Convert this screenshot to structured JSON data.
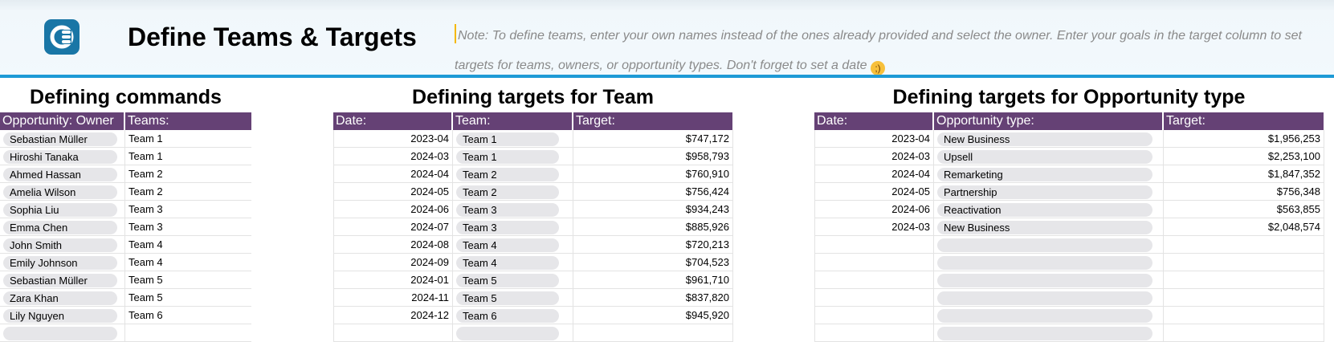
{
  "header": {
    "title": "Define Teams & Targets",
    "note": "Note: To define teams, enter your own names instead of the ones already provided and select the owner. Enter your goals in the target column to set targets for teams, owners, or opportunity types. Don't forget to set a date",
    "logo_icon": "coda-logo-icon",
    "emoji_icon": "winking-face-emoji-icon",
    "accent_color": "#1d9ad6",
    "header_row_color": "#654175"
  },
  "commands": {
    "title": "Defining commands",
    "headers": [
      "Opportunity: Owner",
      "Teams:"
    ],
    "rows": [
      {
        "owner": "Sebastian Müller",
        "team": "Team 1"
      },
      {
        "owner": "Hiroshi Tanaka",
        "team": "Team 1"
      },
      {
        "owner": "Ahmed Hassan",
        "team": "Team 2"
      },
      {
        "owner": "Amelia Wilson",
        "team": "Team 2"
      },
      {
        "owner": "Sophia Liu",
        "team": "Team 3"
      },
      {
        "owner": "Emma Chen",
        "team": "Team 3"
      },
      {
        "owner": "John Smith",
        "team": "Team 4"
      },
      {
        "owner": "Emily Johnson",
        "team": "Team 4"
      },
      {
        "owner": "Sebastian Müller",
        "team": "Team 5"
      },
      {
        "owner": "Zara Khan",
        "team": "Team 5"
      },
      {
        "owner": "Lily Nguyen",
        "team": "Team 6"
      },
      {
        "owner": "",
        "team": ""
      }
    ]
  },
  "team_targets": {
    "title": "Defining targets for Team",
    "headers": [
      "Date:",
      "Team:",
      "Target:"
    ],
    "rows": [
      {
        "date": "2023-04",
        "team": "Team 1",
        "target": "$747,172"
      },
      {
        "date": "2024-03",
        "team": "Team 1",
        "target": "$958,793"
      },
      {
        "date": "2024-04",
        "team": "Team 2",
        "target": "$760,910"
      },
      {
        "date": "2024-05",
        "team": "Team 2",
        "target": "$756,424"
      },
      {
        "date": "2024-06",
        "team": "Team 3",
        "target": "$934,243"
      },
      {
        "date": "2024-07",
        "team": "Team 3",
        "target": "$885,926"
      },
      {
        "date": "2024-08",
        "team": "Team 4",
        "target": "$720,213"
      },
      {
        "date": "2024-09",
        "team": "Team 4",
        "target": "$704,523"
      },
      {
        "date": "2024-01",
        "team": "Team 5",
        "target": "$961,710"
      },
      {
        "date": "2024-11",
        "team": "Team 5",
        "target": "$837,820"
      },
      {
        "date": "2024-12",
        "team": "Team 6",
        "target": "$945,920"
      },
      {
        "date": "",
        "team": "",
        "target": ""
      }
    ]
  },
  "opportunity_targets": {
    "title": "Defining targets for Opportunity type",
    "headers": [
      "Date:",
      "Opportunity type:",
      "Target:"
    ],
    "rows": [
      {
        "date": "2023-04",
        "type": "New Business",
        "target": "$1,956,253"
      },
      {
        "date": "2024-03",
        "type": "Upsell",
        "target": "$2,253,100"
      },
      {
        "date": "2024-04",
        "type": "Remarketing",
        "target": "$1,847,352"
      },
      {
        "date": "2024-05",
        "type": "Partnership",
        "target": "$756,348"
      },
      {
        "date": "2024-06",
        "type": "Reactivation",
        "target": "$563,855"
      },
      {
        "date": "2024-03",
        "type": "New Business",
        "target": "$2,048,574"
      },
      {
        "date": "",
        "type": "",
        "target": ""
      },
      {
        "date": "",
        "type": "",
        "target": ""
      },
      {
        "date": "",
        "type": "",
        "target": ""
      },
      {
        "date": "",
        "type": "",
        "target": ""
      },
      {
        "date": "",
        "type": "",
        "target": ""
      },
      {
        "date": "",
        "type": "",
        "target": ""
      }
    ]
  }
}
